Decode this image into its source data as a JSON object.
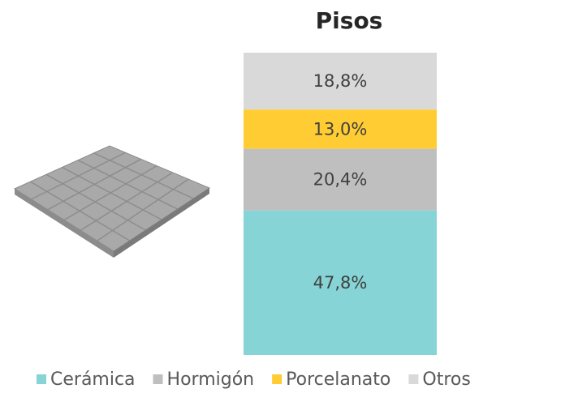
{
  "chart_data": {
    "type": "bar",
    "stacked": true,
    "title": "Pisos",
    "categories": [
      null
    ],
    "series": [
      {
        "name": "Cerámica",
        "color": "#86d4d5",
        "values": [
          47.8
        ],
        "value_labels": [
          "47,8%"
        ]
      },
      {
        "name": "Hormigón",
        "color": "#bfbfbf",
        "values": [
          20.4
        ],
        "value_labels": [
          "20,4%"
        ]
      },
      {
        "name": "Porcelanato",
        "color": "#ffcd33",
        "values": [
          13.0
        ],
        "value_labels": [
          "13,0%"
        ]
      },
      {
        "name": "Otros",
        "color": "#d9d9d9",
        "values": [
          18.8
        ],
        "value_labels": [
          "18,8%"
        ]
      }
    ],
    "legend": "bottom"
  }
}
